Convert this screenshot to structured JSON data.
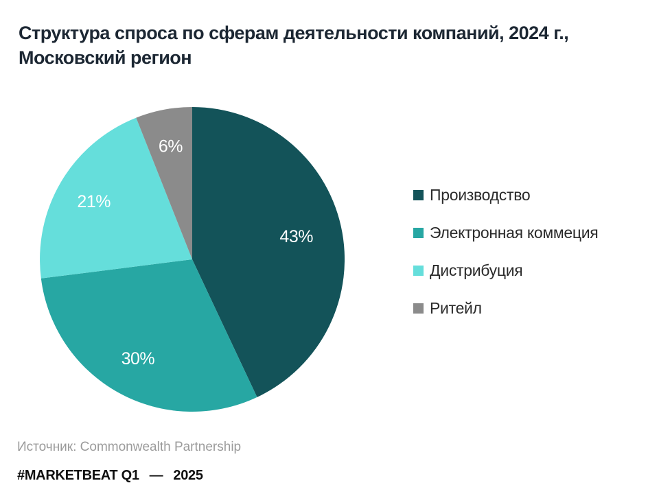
{
  "title": {
    "line1": "Структура спроса по сферам деятельности компаний, 2024 г.,",
    "line2": "Московский регион"
  },
  "chart_data": {
    "type": "pie",
    "title": "Структура спроса по сферам деятельности компаний, 2024 г., Московский регион",
    "unit": "%",
    "direction": "clockwise",
    "start_angle": "12-oclock",
    "legend_position": "right",
    "data_labels": "inside-white",
    "slices": [
      {
        "label": "Производство",
        "value": 43,
        "data_label": "43%",
        "color": "#135359",
        "label_r": 0.7
      },
      {
        "label": "Электронная коммеция",
        "value": 30,
        "data_label": "30%",
        "color": "#27a7a3",
        "label_r": 0.74
      },
      {
        "label": "Дистрибуция",
        "value": 21,
        "data_label": "21%",
        "color": "#65dedb",
        "label_r": 0.75
      },
      {
        "label": "Ритейл",
        "value": 6,
        "data_label": "6%",
        "color": "#8b8b8b",
        "label_r": 0.76
      }
    ]
  },
  "source": {
    "text": "Источник: Commonwealth Partnership"
  },
  "footer": {
    "brand": "#MARKETBEAT Q1",
    "separator": "—",
    "year": "2025"
  },
  "colors": {
    "title_text": "#1c2733",
    "legend_text": "#2b2b2b",
    "source_text": "#9b9b9b",
    "footer_text": "#101010",
    "data_label_text": "#ffffff",
    "background": "#ffffff"
  }
}
